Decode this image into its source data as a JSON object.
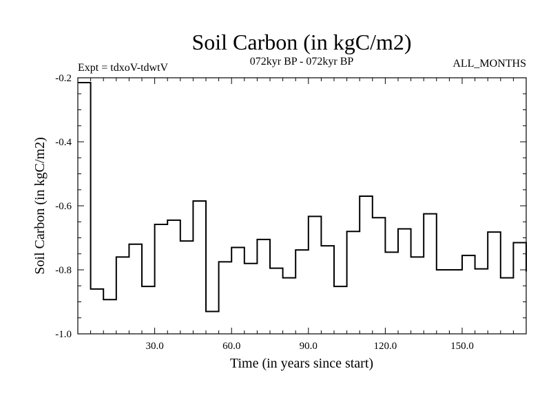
{
  "chart_data": {
    "type": "line",
    "step": true,
    "title": "Soil Carbon (in kgC/m2)",
    "subtitle": "072kyr BP - 072kyr BP",
    "left_note": "Expt = tdxoV-tdwtV",
    "right_note": "ALL_MONTHS",
    "xlabel": "Time (in years since start)",
    "ylabel": "Soil Carbon (in kgC/m2)",
    "xlim": [
      0,
      175
    ],
    "ylim": [
      -1.0,
      -0.2
    ],
    "xticks": [
      {
        "value": 30,
        "label": "30.0"
      },
      {
        "value": 60,
        "label": "60.0"
      },
      {
        "value": 90,
        "label": "90.0"
      },
      {
        "value": 120,
        "label": "120.0"
      },
      {
        "value": 150,
        "label": "150.0"
      }
    ],
    "yticks": [
      {
        "value": -0.2,
        "label": "-0.2"
      },
      {
        "value": -0.4,
        "label": "-0.4"
      },
      {
        "value": -0.6,
        "label": "-0.6"
      },
      {
        "value": -0.8,
        "label": "-0.8"
      },
      {
        "value": -1.0,
        "label": "-1.0"
      }
    ],
    "series": [
      {
        "name": "Soil Carbon",
        "color": "#000000",
        "x": [
          0,
          5,
          10,
          15,
          20,
          25,
          30,
          35,
          40,
          45,
          50,
          55,
          60,
          65,
          70,
          75,
          80,
          85,
          90,
          95,
          100,
          105,
          110,
          115,
          120,
          125,
          130,
          135,
          140,
          145,
          150,
          155,
          160,
          165,
          170
        ],
        "values": [
          -0.215,
          -0.86,
          -0.893,
          -0.76,
          -0.72,
          -0.852,
          -0.658,
          -0.645,
          -0.71,
          -0.585,
          -0.93,
          -0.775,
          -0.73,
          -0.78,
          -0.705,
          -0.795,
          -0.825,
          -0.738,
          -0.633,
          -0.725,
          -0.852,
          -0.68,
          -0.57,
          -0.637,
          -0.745,
          -0.672,
          -0.76,
          -0.625,
          -0.8,
          -0.8,
          -0.755,
          -0.797,
          -0.682,
          -0.825,
          -0.715
        ]
      }
    ],
    "x_end": 175,
    "last_value": -0.805
  }
}
